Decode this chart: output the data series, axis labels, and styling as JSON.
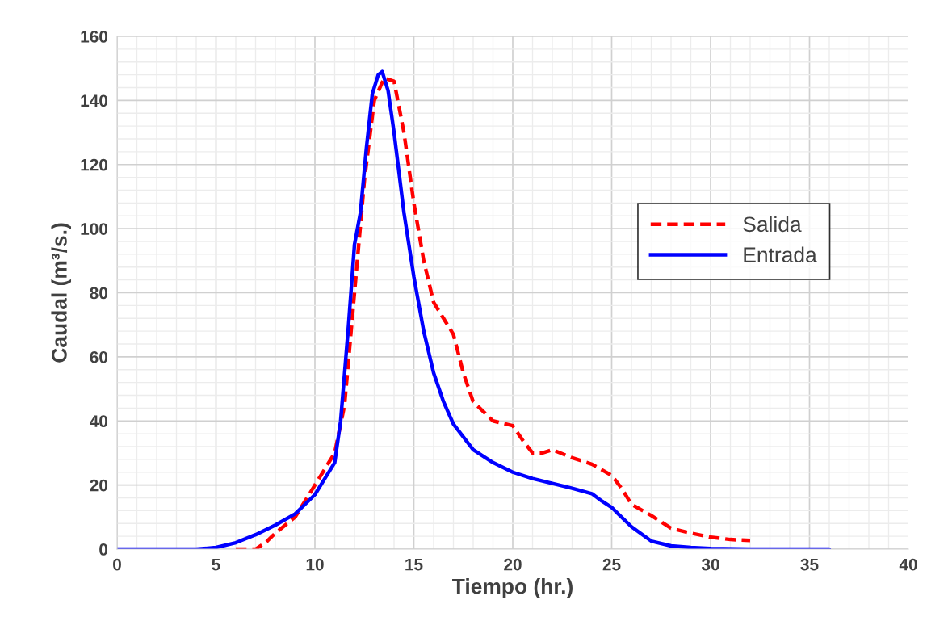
{
  "chart_data": {
    "type": "line",
    "xlabel": "Tiempo (hr.)",
    "ylabel": "Caudal (m³/s.)",
    "xlim": [
      0,
      40
    ],
    "ylim": [
      0,
      160
    ],
    "xticks": [
      0,
      5,
      10,
      15,
      20,
      25,
      30,
      35,
      40
    ],
    "yticks": [
      0,
      20,
      40,
      60,
      80,
      100,
      120,
      140,
      160
    ],
    "grid": true,
    "legend": "right",
    "series": [
      {
        "name": "Salida",
        "color": "#ff0000",
        "line_style": "dashed",
        "x": [
          6,
          7,
          7.5,
          8,
          9,
          10,
          11,
          11.5,
          12,
          12.5,
          13,
          13.5,
          14,
          14.5,
          15,
          15.5,
          16,
          16.5,
          17,
          17.5,
          18,
          19,
          20,
          20.5,
          21,
          21.5,
          22,
          23,
          24,
          25,
          25.5,
          26,
          27,
          28,
          29,
          30,
          31,
          32
        ],
        "values": [
          0,
          0,
          2,
          5,
          10,
          20,
          30,
          45,
          80,
          115,
          140,
          147,
          146,
          130,
          108,
          90,
          77,
          72,
          67,
          55,
          46,
          40,
          38.5,
          34,
          30,
          30,
          31,
          28.5,
          26.5,
          23,
          19,
          14,
          10.5,
          6.5,
          5,
          3.7,
          3,
          2.7
        ]
      },
      {
        "name": "Entrada",
        "color": "#0000ff",
        "line_style": "solid",
        "x": [
          0,
          2,
          4,
          5,
          6,
          7,
          8,
          9,
          10,
          10.5,
          11,
          11.3,
          11.7,
          12,
          12.3,
          12.6,
          12.9,
          13.2,
          13.4,
          13.7,
          14,
          14.5,
          15,
          15.5,
          16,
          16.5,
          17,
          18,
          19,
          20,
          21,
          22,
          23,
          24,
          24.5,
          25,
          26,
          27,
          28,
          29,
          30,
          32,
          36
        ],
        "values": [
          0,
          0,
          0,
          0.5,
          2,
          4.5,
          7.5,
          11,
          17,
          22,
          27,
          40,
          70,
          95,
          105,
          125,
          142,
          148,
          149,
          143,
          130,
          105,
          85,
          68,
          55,
          46,
          39,
          31,
          27,
          24,
          22,
          20.5,
          19,
          17.3,
          15,
          13,
          7,
          2.5,
          1,
          0.5,
          0.2,
          0,
          0
        ]
      }
    ]
  }
}
